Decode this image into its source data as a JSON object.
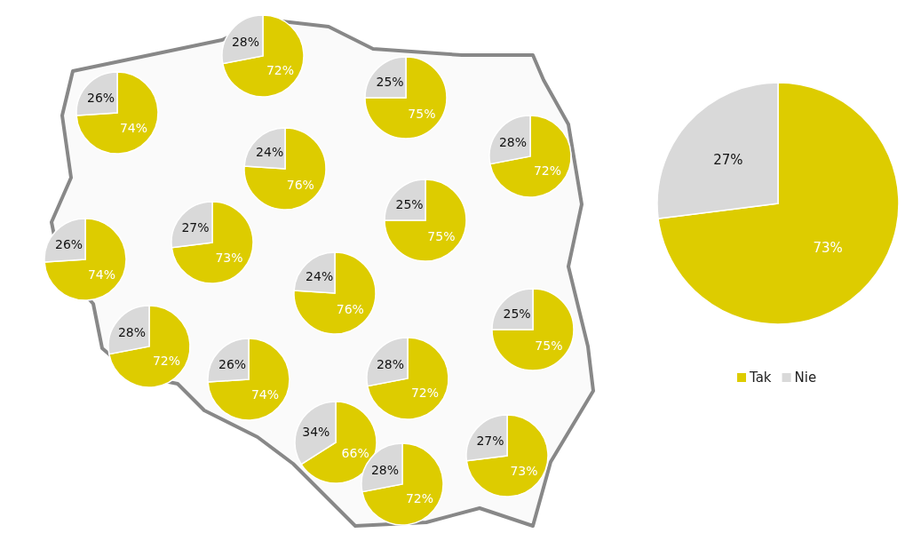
{
  "chart_data": [
    {
      "type": "pie",
      "categories": [
        null,
        null
      ],
      "values": [
        72,
        28
      ],
      "value_labels": [
        "72%",
        "28%"
      ],
      "colors": [
        "#ddcc00",
        "#d9d9d9"
      ]
    },
    {
      "type": "pie",
      "categories": [
        null,
        null
      ],
      "values": [
        74,
        26
      ],
      "value_labels": [
        "74%",
        "26%"
      ],
      "colors": [
        "#ddcc00",
        "#d9d9d9"
      ]
    },
    {
      "type": "pie",
      "categories": [
        null,
        null
      ],
      "values": [
        75,
        25
      ],
      "value_labels": [
        "75%",
        "25%"
      ],
      "colors": [
        "#ddcc00",
        "#d9d9d9"
      ]
    },
    {
      "type": "pie",
      "categories": [
        null,
        null
      ],
      "values": [
        72,
        28
      ],
      "value_labels": [
        "72%",
        "28%"
      ],
      "colors": [
        "#ddcc00",
        "#d9d9d9"
      ]
    },
    {
      "type": "pie",
      "categories": [
        null,
        null
      ],
      "values": [
        76,
        24
      ],
      "value_labels": [
        "76%",
        "24%"
      ],
      "colors": [
        "#ddcc00",
        "#d9d9d9"
      ]
    },
    {
      "type": "pie",
      "categories": [
        null,
        null
      ],
      "values": [
        73,
        27
      ],
      "value_labels": [
        "73%",
        "27%"
      ],
      "colors": [
        "#ddcc00",
        "#d9d9d9"
      ]
    },
    {
      "type": "pie",
      "categories": [
        null,
        null
      ],
      "values": [
        75,
        25
      ],
      "value_labels": [
        "75%",
        "25%"
      ],
      "colors": [
        "#ddcc00",
        "#d9d9d9"
      ]
    },
    {
      "type": "pie",
      "categories": [
        null,
        null
      ],
      "values": [
        74,
        26
      ],
      "value_labels": [
        "74%",
        "26%"
      ],
      "colors": [
        "#ddcc00",
        "#d9d9d9"
      ]
    },
    {
      "type": "pie",
      "categories": [
        null,
        null
      ],
      "values": [
        76,
        24
      ],
      "value_labels": [
        "76%",
        "24%"
      ],
      "colors": [
        "#ddcc00",
        "#d9d9d9"
      ]
    },
    {
      "type": "pie",
      "categories": [
        null,
        null
      ],
      "values": [
        72,
        28
      ],
      "value_labels": [
        "72%",
        "28%"
      ],
      "colors": [
        "#ddcc00",
        "#d9d9d9"
      ]
    },
    {
      "type": "pie",
      "categories": [
        null,
        null
      ],
      "values": [
        75,
        25
      ],
      "value_labels": [
        "75%",
        "25%"
      ],
      "colors": [
        "#ddcc00",
        "#d9d9d9"
      ]
    },
    {
      "type": "pie",
      "categories": [
        null,
        null
      ],
      "values": [
        74,
        26
      ],
      "value_labels": [
        "74%",
        "26%"
      ],
      "colors": [
        "#ddcc00",
        "#d9d9d9"
      ]
    },
    {
      "type": "pie",
      "categories": [
        null,
        null
      ],
      "values": [
        72,
        28
      ],
      "value_labels": [
        "72%",
        "28%"
      ],
      "colors": [
        "#ddcc00",
        "#d9d9d9"
      ]
    },
    {
      "type": "pie",
      "categories": [
        null,
        null
      ],
      "values": [
        66,
        34
      ],
      "value_labels": [
        "66%",
        "34%"
      ],
      "colors": [
        "#ddcc00",
        "#d9d9d9"
      ]
    },
    {
      "type": "pie",
      "categories": [
        null,
        null
      ],
      "values": [
        72,
        28
      ],
      "value_labels": [
        "72%",
        "28%"
      ],
      "colors": [
        "#ddcc00",
        "#d9d9d9"
      ]
    },
    {
      "type": "pie",
      "categories": [
        null,
        null
      ],
      "values": [
        73,
        27
      ],
      "value_labels": [
        "73%",
        "27%"
      ],
      "colors": [
        "#ddcc00",
        "#d9d9d9"
      ]
    },
    {
      "type": "pie",
      "categories": [
        "Tak",
        "Nie"
      ],
      "values": [
        73,
        27
      ],
      "value_labels": [
        "73%",
        "27%"
      ],
      "colors": [
        "#ddcc00",
        "#d9d9d9"
      ],
      "legend": "bottom"
    }
  ]
}
